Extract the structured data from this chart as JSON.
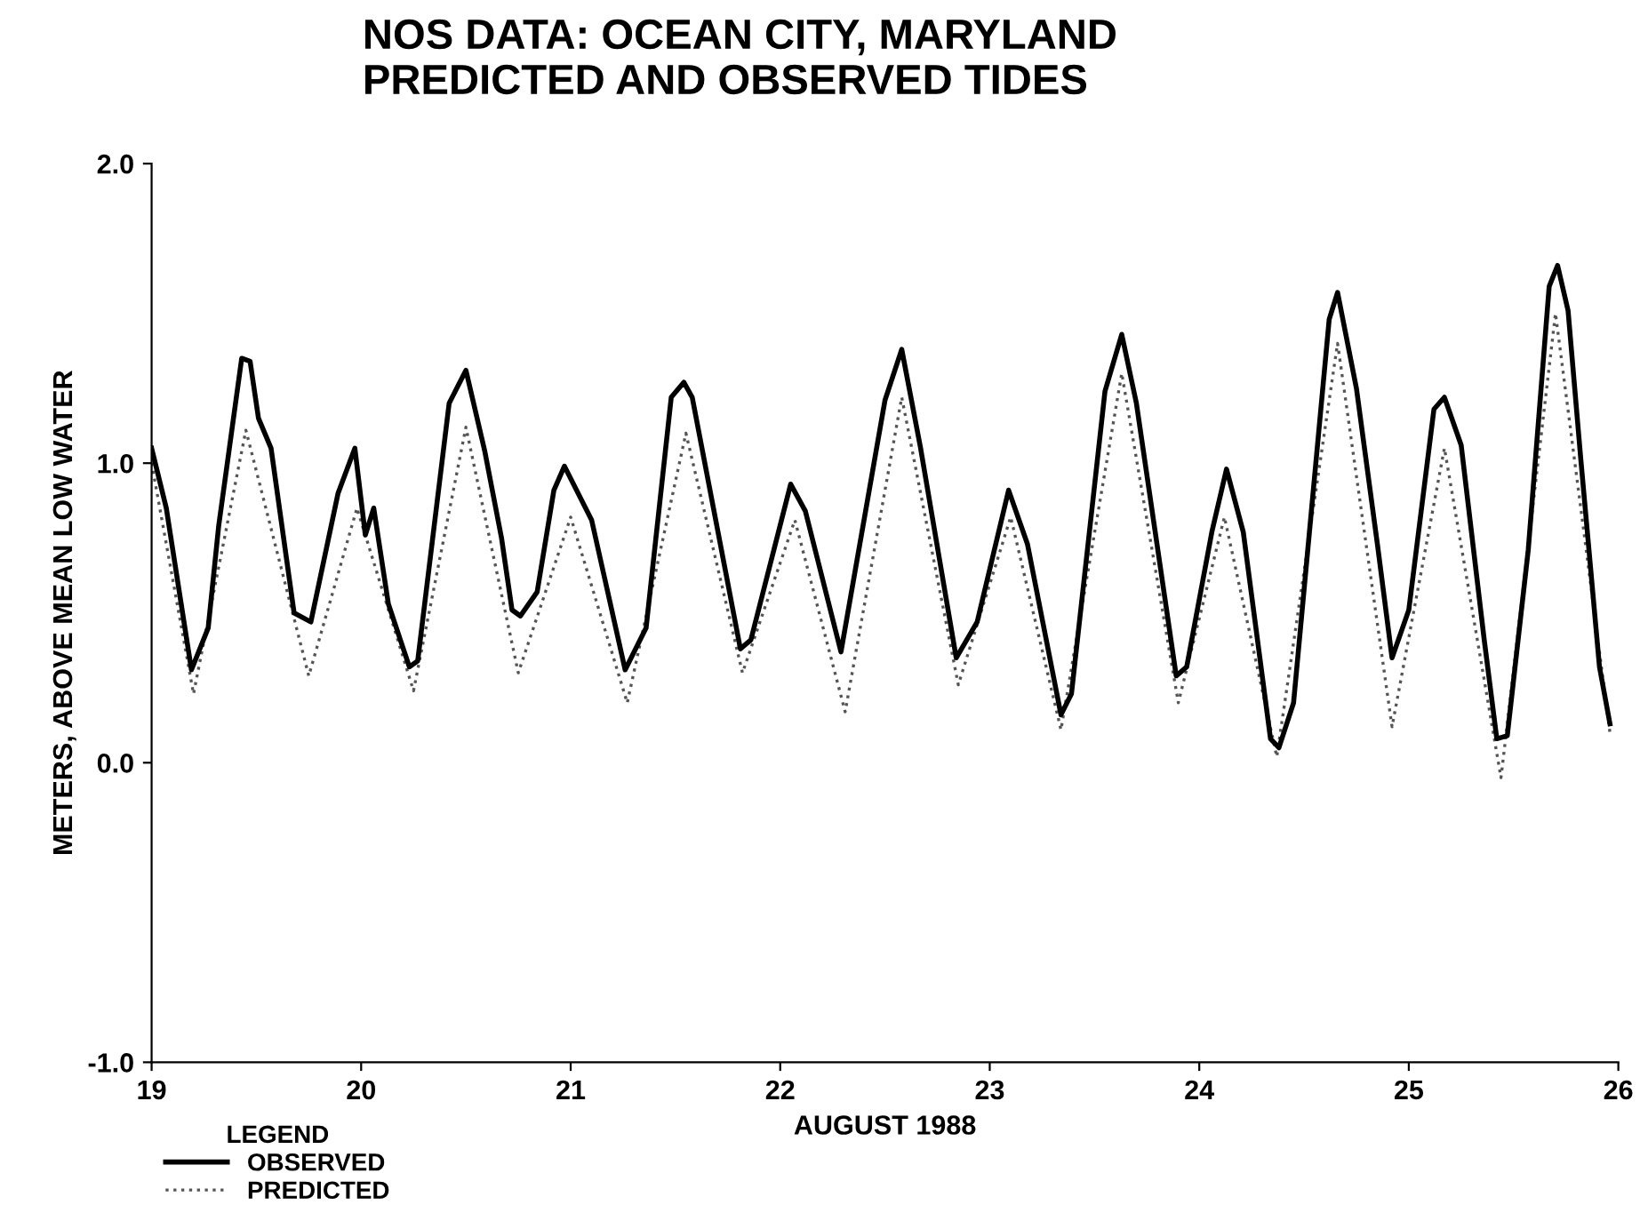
{
  "chart_data": {
    "type": "line",
    "title": "NOS DATA: OCEAN CITY, MARYLAND\nPREDICTED AND OBSERVED TIDES",
    "xlabel": "AUGUST 1988",
    "ylabel": "METERS, ABOVE MEAN LOW WATER",
    "xlim": [
      19,
      26
    ],
    "xticks": [
      19,
      20,
      21,
      22,
      23,
      24,
      25,
      26
    ],
    "ylim": [
      -1,
      2
    ],
    "yticks": [
      {
        "value": -1,
        "label": "-1.0"
      },
      {
        "value": 0,
        "label": "0.0"
      },
      {
        "value": 1,
        "label": "1.0"
      },
      {
        "value": 2,
        "label": "2.0"
      }
    ],
    "grid": false,
    "legend": "bottom left",
    "legend_title": "LEGEND",
    "series": [
      {
        "name": "OBSERVED",
        "color": "#000000",
        "line_style": "solid",
        "x": [
          19.0,
          19.07,
          19.19,
          19.27,
          19.32,
          19.43,
          19.47,
          19.51,
          19.57,
          19.68,
          19.76,
          19.89,
          19.97,
          20.02,
          20.06,
          20.13,
          20.23,
          20.27,
          20.42,
          20.5,
          20.59,
          20.67,
          20.72,
          20.76,
          20.84,
          20.92,
          20.97,
          21.1,
          21.26,
          21.36,
          21.48,
          21.54,
          21.58,
          21.81,
          21.86,
          22.05,
          22.12,
          22.29,
          22.5,
          22.58,
          22.67,
          22.84,
          22.94,
          23.09,
          23.18,
          23.34,
          23.39,
          23.55,
          23.63,
          23.7,
          23.89,
          23.94,
          24.06,
          24.13,
          24.21,
          24.34,
          24.38,
          24.45,
          24.62,
          24.66,
          24.75,
          24.85,
          24.92,
          25.0,
          25.12,
          25.17,
          25.25,
          25.36,
          25.42,
          25.47,
          25.57,
          25.67,
          25.71,
          25.76,
          25.82,
          25.91,
          25.96
        ],
        "values": [
          1.05,
          0.85,
          0.31,
          0.45,
          0.79,
          1.35,
          1.34,
          1.15,
          1.05,
          0.5,
          0.47,
          0.9,
          1.05,
          0.76,
          0.85,
          0.53,
          0.32,
          0.34,
          1.2,
          1.31,
          1.04,
          0.75,
          0.51,
          0.49,
          0.57,
          0.91,
          0.99,
          0.81,
          0.31,
          0.45,
          1.22,
          1.27,
          1.22,
          0.38,
          0.41,
          0.93,
          0.84,
          0.37,
          1.21,
          1.38,
          1.05,
          0.35,
          0.47,
          0.91,
          0.73,
          0.16,
          0.23,
          1.24,
          1.43,
          1.2,
          0.29,
          0.32,
          0.77,
          0.98,
          0.77,
          0.08,
          0.05,
          0.2,
          1.48,
          1.57,
          1.25,
          0.73,
          0.35,
          0.51,
          1.18,
          1.22,
          1.06,
          0.41,
          0.08,
          0.09,
          0.71,
          1.59,
          1.66,
          1.51,
          1.02,
          0.32,
          0.13
        ]
      },
      {
        "name": "PREDICTED",
        "color": "#555555",
        "line_style": "dotted",
        "x": [
          19.0,
          19.2,
          19.45,
          19.75,
          19.98,
          20.25,
          20.5,
          20.75,
          21.0,
          21.27,
          21.55,
          21.82,
          22.07,
          22.31,
          22.58,
          22.85,
          23.1,
          23.34,
          23.63,
          23.9,
          24.12,
          24.37,
          24.66,
          24.92,
          25.17,
          25.44,
          25.7,
          25.96
        ],
        "values": [
          1.0,
          0.23,
          1.11,
          0.29,
          0.85,
          0.24,
          1.12,
          0.3,
          0.82,
          0.2,
          1.1,
          0.3,
          0.81,
          0.17,
          1.22,
          0.26,
          0.82,
          0.11,
          1.3,
          0.2,
          0.82,
          0.02,
          1.4,
          0.12,
          1.05,
          -0.05,
          1.5,
          0.1
        ]
      }
    ]
  }
}
